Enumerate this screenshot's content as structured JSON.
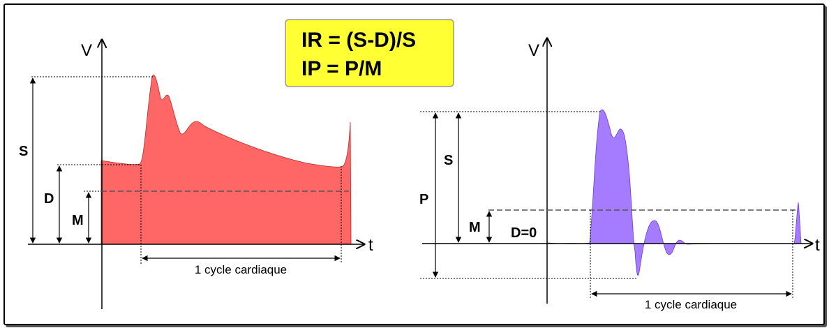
{
  "formula_box": {
    "lines": [
      "IR = (S-D)/S",
      "IP = P/M"
    ],
    "fill_color": "#ffff33"
  },
  "left_diagram": {
    "axis_y_label": "V",
    "axis_x_label": "t",
    "labels": {
      "S": "S",
      "D": "D",
      "M": "M"
    },
    "cycle_label": "1 cycle cardiaque",
    "waveform_color": "#ff6666"
  },
  "right_diagram": {
    "axis_y_label": "V",
    "axis_x_label": "t",
    "labels": {
      "P": "P",
      "S": "S",
      "M": "M",
      "D": "D=0"
    },
    "cycle_label": "1 cycle cardiaque",
    "waveform_color": "#a57bff"
  }
}
